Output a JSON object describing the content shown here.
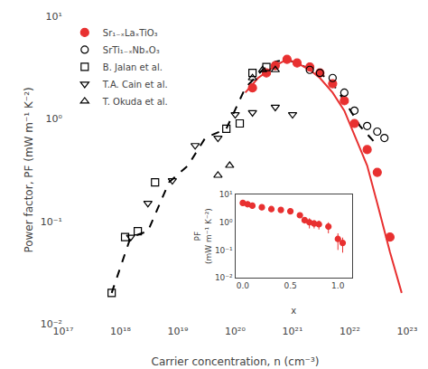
{
  "chart_data": [
    {
      "type": "scatter",
      "xlabel": "Carrier concentration, n (cm⁻³)",
      "ylabel": "Power factor, PF (mW m⁻¹ K⁻²)",
      "log": true,
      "grid": false,
      "legend": "upper left",
      "xlim": [
        1e+17,
        1e+23
      ],
      "xticks": [
        {
          "value": 1e+17,
          "label": "10¹⁷"
        },
        {
          "value": 1e+18,
          "label": "10¹⁸"
        },
        {
          "value": 1e+19,
          "label": "10¹⁹"
        },
        {
          "value": 1e+20,
          "label": "10²⁰"
        },
        {
          "value": 1e+21,
          "label": "10²¹"
        },
        {
          "value": 1e+22,
          "label": "10²²"
        },
        {
          "value": 1e+23,
          "label": "10²³"
        }
      ],
      "ylim": [
        0.01,
        10
      ],
      "yticks": [
        {
          "value": 0.01,
          "label": "10⁻²"
        },
        {
          "value": 0.1,
          "label": "10⁻¹"
        },
        {
          "value": 1,
          "label": "10⁰"
        },
        {
          "value": 10,
          "label": "10¹"
        }
      ],
      "series": [
        {
          "type": "line",
          "line_style": "dashed",
          "color": "#000000",
          "x": [
            7e+17,
            1.5e+18,
            3e+18,
            7e+18,
            1.5e+19,
            3e+19,
            7e+19,
            1.5e+20,
            3e+20,
            5e+20,
            8e+20,
            1.5e+21,
            3e+21,
            5e+21,
            8e+21,
            1.5e+22,
            3e+22
          ],
          "values": [
            0.02,
            0.07,
            0.08,
            0.24,
            0.35,
            0.65,
            0.8,
            2.0,
            3.0,
            3.6,
            3.8,
            3.3,
            2.8,
            2.2,
            1.5,
            0.85,
            0.55
          ]
        },
        {
          "type": "line",
          "line_style": "solid",
          "color": "#e83030",
          "x": [
            1.5e+20,
            2.5e+20,
            5e+20,
            8e+20,
            1.2e+21,
            2e+21,
            3e+21,
            5e+21,
            8e+21,
            1.2e+22,
            2e+22,
            3e+22,
            5e+22,
            8e+22
          ],
          "values": [
            1.8,
            2.5,
            3.3,
            3.8,
            3.5,
            3.0,
            2.5,
            1.8,
            1.2,
            0.7,
            0.35,
            0.15,
            0.05,
            0.02
          ]
        },
        {
          "type": "scatter",
          "name": "Sr₁₋ₓLaₓTiO₃",
          "marker": "circle",
          "color": "#e83030",
          "x": [
            2e+20,
            3.5e+20,
            5e+20,
            8e+20,
            1.2e+21,
            2e+21,
            3e+21,
            5e+21,
            8e+21,
            1.2e+22,
            2e+22,
            3e+22,
            5e+22
          ],
          "values": [
            2.0,
            2.8,
            3.3,
            3.8,
            3.5,
            3.2,
            2.8,
            2.2,
            1.5,
            0.9,
            0.5,
            0.3,
            0.07
          ]
        },
        {
          "type": "scatter",
          "name": "SrTi₁₋ₓNbₓO₃",
          "marker": "open_circle",
          "color": "#000000",
          "x": [
            2e+21,
            3e+21,
            5e+21,
            8e+21,
            1.2e+22,
            2e+22,
            3e+22,
            4e+22
          ],
          "values": [
            3.0,
            2.8,
            2.5,
            1.8,
            1.2,
            0.85,
            0.75,
            0.65
          ]
        },
        {
          "type": "scatter",
          "name": "B. Jalan et al.",
          "marker": "open_square",
          "color": "#000000",
          "x": [
            7e+17,
            1.2e+18,
            2e+18,
            4e+18,
            7e+19,
            1.2e+20,
            2e+20,
            3.5e+20
          ],
          "values": [
            0.02,
            0.07,
            0.08,
            0.24,
            0.8,
            0.9,
            2.8,
            3.2
          ]
        },
        {
          "type": "scatter",
          "name": "T.A. Cain et al.",
          "marker": "open_triangle_down",
          "color": "#000000",
          "x": [
            1.5e+18,
            3e+18,
            8e+18,
            2e+19,
            5e+19,
            1e+20,
            2e+20,
            5e+20,
            1e+21
          ],
          "values": [
            0.07,
            0.15,
            0.25,
            0.55,
            0.65,
            1.1,
            1.15,
            1.3,
            1.1
          ]
        },
        {
          "type": "scatter",
          "name": "T. Okuda et al.",
          "marker": "open_triangle_up",
          "color": "#000000",
          "x": [
            5e+19,
            8e+19,
            2e+20,
            3e+20,
            5e+20
          ],
          "values": [
            0.28,
            0.35,
            2.5,
            3.0,
            3.0
          ]
        }
      ]
    },
    {
      "type": "scatter",
      "xlabel": "x",
      "ylabel": "PF\n(mW m⁻¹ K⁻²)",
      "log": "y",
      "grid": false,
      "xlim": [
        -0.08,
        1.15
      ],
      "xticks": [
        {
          "value": 0,
          "label": "0.0"
        },
        0.5,
        {
          "value": 1,
          "label": "1.0"
        }
      ],
      "ylim": [
        0.01,
        10
      ],
      "yticks": [
        {
          "value": 0.01,
          "label": "10⁻²"
        },
        {
          "value": 0.1,
          "label": "10⁻¹"
        },
        {
          "value": 1,
          "label": "10⁰"
        },
        {
          "value": 10,
          "label": "10¹"
        }
      ],
      "series": [
        {
          "type": "scatter",
          "marker": "circle",
          "color": "#e83030",
          "x": [
            0.0,
            0.05,
            0.1,
            0.2,
            0.3,
            0.4,
            0.5,
            0.6,
            0.65,
            0.7,
            0.75,
            0.8,
            0.9,
            1.0,
            1.05
          ],
          "values": [
            5.0,
            4.5,
            4.0,
            3.5,
            3.0,
            2.8,
            2.5,
            1.8,
            1.2,
            1.0,
            0.9,
            0.85,
            0.7,
            0.25,
            0.18
          ],
          "errors": [
            0.5,
            0.4,
            0.35,
            0.3,
            0.25,
            0.2,
            0.2,
            0.3,
            0.3,
            0.4,
            0.3,
            0.3,
            0.3,
            0.15,
            0.1
          ]
        }
      ]
    }
  ]
}
